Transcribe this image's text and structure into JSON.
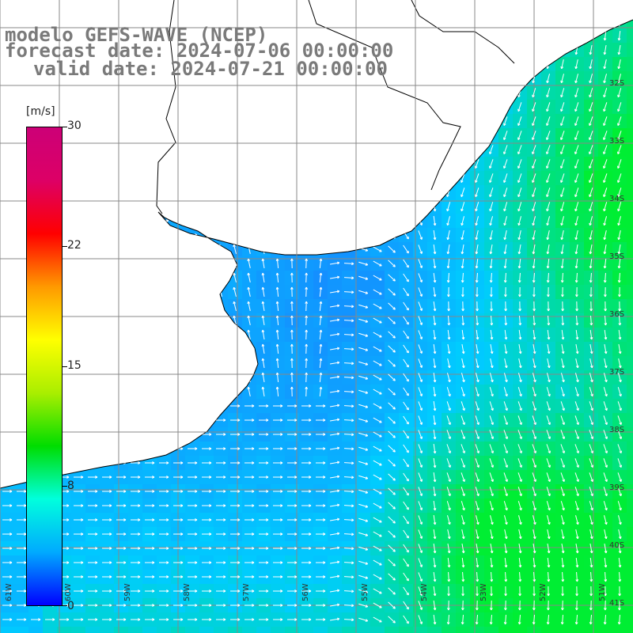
{
  "title": {
    "line1": "modelo GEFS-WAVE (NCEP)",
    "line2": "forecast date: 2024-07-06 00:00:00",
    "line3": "valid date: 2024-07-21 00:00:00"
  },
  "colorbar": {
    "units": "[m/s]",
    "ticks": [
      "30",
      "22",
      "15",
      "8",
      "0"
    ],
    "min": 0,
    "max": 30,
    "colors": [
      "#0000ff",
      "#00aaff",
      "#00ffdd",
      "#00dd00",
      "#aaee00",
      "#ffff00",
      "#ff9900",
      "#ff0000",
      "#dd0066",
      "#cc0077"
    ]
  },
  "map": {
    "ocean_color_weak": "#1a7cff",
    "ocean_color_mid": "#00ccff",
    "ocean_color_strong": "#00ee33",
    "land_color": "#ffffff",
    "grid_color": "#888888",
    "arrow_color": "#ffffff",
    "lat_labels": [
      "32S",
      "33S",
      "34S",
      "35S",
      "36S",
      "37S",
      "38S",
      "39S",
      "40S",
      "41S"
    ],
    "lon_labels": [
      "61W",
      "60W",
      "59W",
      "58W",
      "57W",
      "56W",
      "55W",
      "54W",
      "53W",
      "52W",
      "51W"
    ]
  }
}
